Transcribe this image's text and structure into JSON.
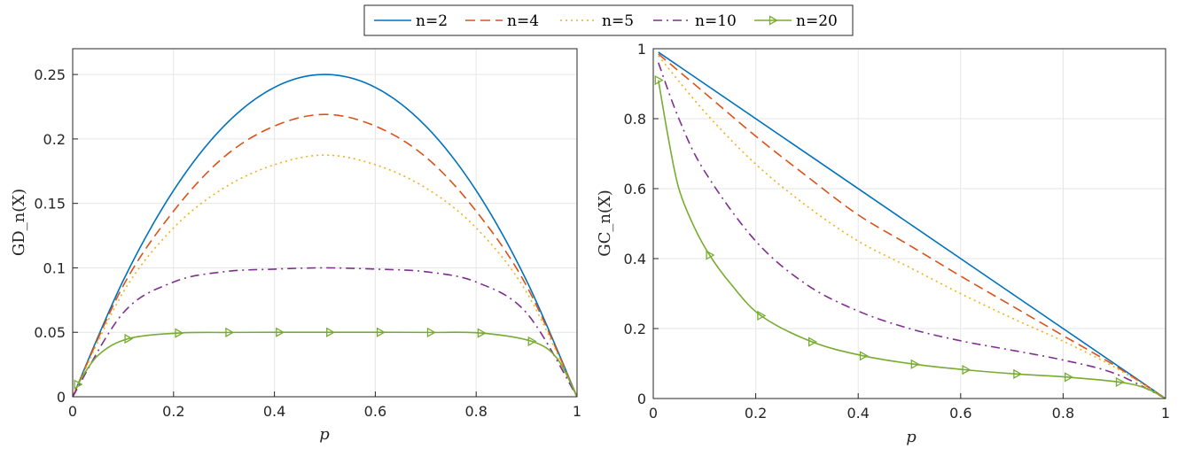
{
  "legend": {
    "entries": [
      {
        "label": "n=2",
        "color": "#0072BD",
        "dash": "solid"
      },
      {
        "label": "n=4",
        "color": "#D95319",
        "dash": "dashed"
      },
      {
        "label": "n=5",
        "color": "#EDB120",
        "dash": "dotted"
      },
      {
        "label": "n=10",
        "color": "#7E2F8E",
        "dash": "dashdot"
      },
      {
        "label": "n=20",
        "color": "#77AC30",
        "dash": "solid",
        "marker": "triangle-right"
      }
    ]
  },
  "chart_data": [
    {
      "type": "line",
      "ylabel": "GD_n(X)",
      "xlabel": "p",
      "xlim": [
        0,
        1
      ],
      "ylim": [
        0,
        0.27
      ],
      "xticks": [
        "0",
        "0.2",
        "0.4",
        "0.6",
        "0.8",
        "1"
      ],
      "yticks": [
        "0",
        "0.05",
        "0.1",
        "0.15",
        "0.2",
        "0.25"
      ],
      "grid": true,
      "series": [
        {
          "name": "n=2",
          "x": [
            0,
            0.1,
            0.2,
            0.3,
            0.4,
            0.5,
            0.6,
            0.7,
            0.8,
            0.9,
            1
          ],
          "y": [
            0,
            0.09,
            0.16,
            0.21,
            0.24,
            0.25,
            0.24,
            0.21,
            0.16,
            0.09,
            0
          ]
        },
        {
          "name": "n=4",
          "x": [
            0,
            0.1,
            0.2,
            0.3,
            0.4,
            0.5,
            0.6,
            0.7,
            0.8,
            0.9,
            1
          ],
          "y": [
            0,
            0.086,
            0.144,
            0.186,
            0.21,
            0.219,
            0.21,
            0.186,
            0.144,
            0.086,
            0
          ]
        },
        {
          "name": "n=5",
          "x": [
            0,
            0.1,
            0.2,
            0.3,
            0.4,
            0.5,
            0.6,
            0.7,
            0.8,
            0.9,
            1
          ],
          "y": [
            0,
            0.081,
            0.131,
            0.162,
            0.18,
            0.1875,
            0.18,
            0.162,
            0.131,
            0.081,
            0
          ]
        },
        {
          "name": "n=10",
          "x": [
            0,
            0.1,
            0.2,
            0.3,
            0.4,
            0.5,
            0.6,
            0.7,
            0.8,
            0.9,
            1
          ],
          "y": [
            0,
            0.065,
            0.089,
            0.097,
            0.099,
            0.1,
            0.099,
            0.097,
            0.089,
            0.065,
            0
          ]
        },
        {
          "name": "n=20",
          "x": [
            0.01,
            0.05,
            0.11,
            0.21,
            0.31,
            0.41,
            0.51,
            0.61,
            0.71,
            0.81,
            0.91,
            0.96,
            1
          ],
          "y": [
            0.0096,
            0.032,
            0.045,
            0.0494,
            0.0499,
            0.05,
            0.05,
            0.05,
            0.0499,
            0.0494,
            0.043,
            0.03,
            0
          ]
        }
      ]
    },
    {
      "type": "line",
      "ylabel": "GC_n(X)",
      "xlabel": "p",
      "xlim": [
        0,
        1
      ],
      "ylim": [
        0,
        1
      ],
      "xticks": [
        "0",
        "0.2",
        "0.4",
        "0.6",
        "0.8",
        "1"
      ],
      "yticks": [
        "0",
        "0.2",
        "0.4",
        "0.6",
        "0.8",
        "1"
      ],
      "grid": true,
      "series": [
        {
          "name": "n=2",
          "x": [
            0.01,
            0.5,
            1
          ],
          "y": [
            0.99,
            0.5,
            0
          ]
        },
        {
          "name": "n=4",
          "x": [
            0.01,
            0.1,
            0.2,
            0.3,
            0.4,
            0.5,
            0.6,
            0.7,
            0.8,
            0.9,
            1
          ],
          "y": [
            0.985,
            0.874,
            0.75,
            0.635,
            0.525,
            0.438,
            0.35,
            0.265,
            0.18,
            0.095,
            0
          ]
        },
        {
          "name": "n=5",
          "x": [
            0.01,
            0.1,
            0.2,
            0.3,
            0.4,
            0.5,
            0.6,
            0.7,
            0.8,
            0.9,
            1
          ],
          "y": [
            0.98,
            0.82,
            0.67,
            0.55,
            0.45,
            0.375,
            0.3,
            0.23,
            0.164,
            0.09,
            0
          ]
        },
        {
          "name": "n=10",
          "x": [
            0.01,
            0.05,
            0.1,
            0.2,
            0.3,
            0.4,
            0.5,
            0.6,
            0.7,
            0.8,
            0.9,
            1
          ],
          "y": [
            0.96,
            0.8,
            0.65,
            0.45,
            0.325,
            0.25,
            0.2,
            0.165,
            0.138,
            0.11,
            0.072,
            0
          ]
        },
        {
          "name": "n=20",
          "x": [
            0.01,
            0.03,
            0.05,
            0.08,
            0.11,
            0.15,
            0.21,
            0.31,
            0.41,
            0.51,
            0.61,
            0.71,
            0.81,
            0.91,
            0.96,
            1
          ],
          "y": [
            0.91,
            0.74,
            0.6,
            0.49,
            0.41,
            0.33,
            0.237,
            0.162,
            0.122,
            0.098,
            0.082,
            0.07,
            0.061,
            0.047,
            0.03,
            0
          ]
        }
      ]
    }
  ]
}
